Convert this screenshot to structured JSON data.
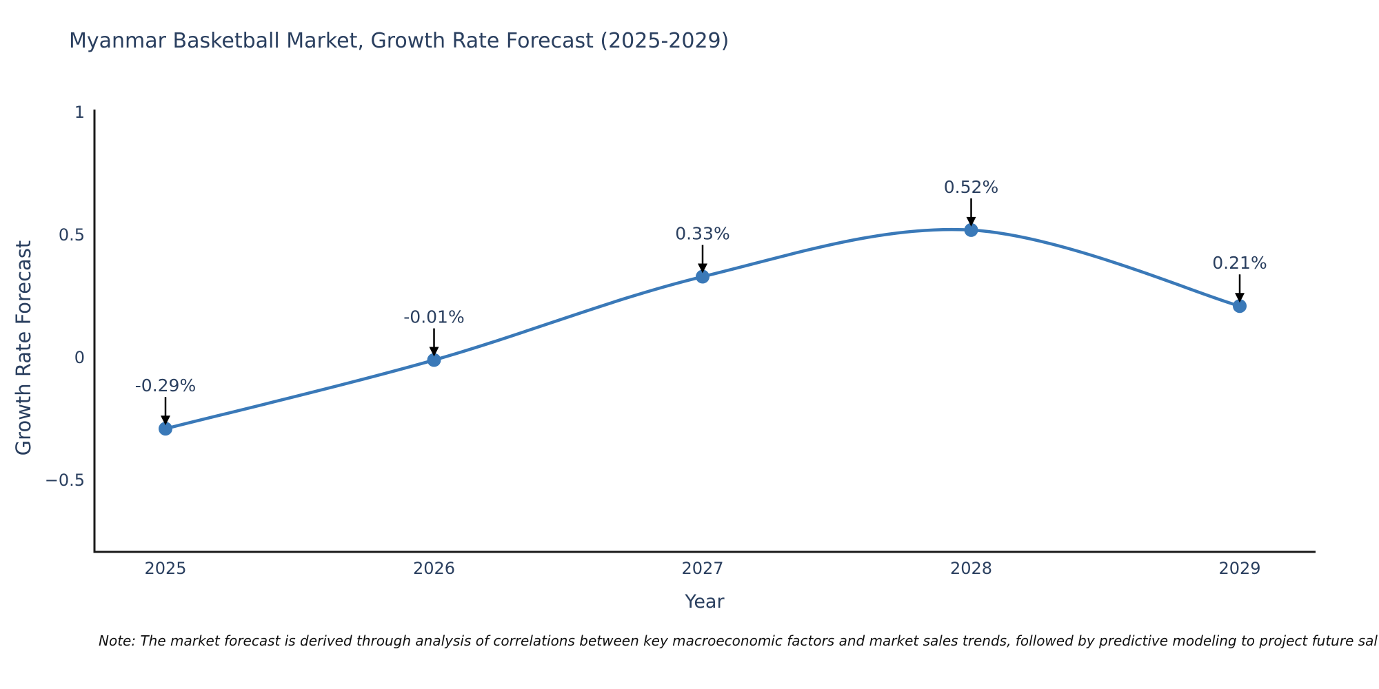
{
  "title": "Myanmar Basketball Market, Growth Rate Forecast (2025-2029)",
  "note": "Note: The market forecast is derived through analysis of correlations between key macroeconomic factors and market sales trends, followed by predictive modeling to project future sal",
  "chart_data": {
    "type": "line",
    "line_shape": "spline",
    "title": "Myanmar Basketball Market, Growth Rate Forecast (2025-2029)",
    "xlabel": "Year",
    "ylabel": "Growth Rate Forecast",
    "x": [
      2025,
      2026,
      2027,
      2028,
      2029
    ],
    "xtick_labels": [
      "2025",
      "2026",
      "2027",
      "2028",
      "2029"
    ],
    "values": [
      -0.29,
      -0.01,
      0.33,
      0.52,
      0.21
    ],
    "point_labels": [
      "-0.29%",
      "-0.01%",
      "0.33%",
      "0.52%",
      "0.21%"
    ],
    "ytick_values": [
      1,
      0.5,
      0,
      -0.5
    ],
    "ytick_labels": [
      "1",
      "0.5",
      "0",
      "−0.5"
    ],
    "ylim": [
      -0.79,
      1.01
    ],
    "grid": false,
    "legend": "none",
    "colors": {
      "line": "#3a79b8",
      "marker": "#3a79b8",
      "text": "#2a3f5f",
      "axis": "#1a1a1a",
      "arrow": "#000000",
      "background": "#ffffff"
    }
  }
}
